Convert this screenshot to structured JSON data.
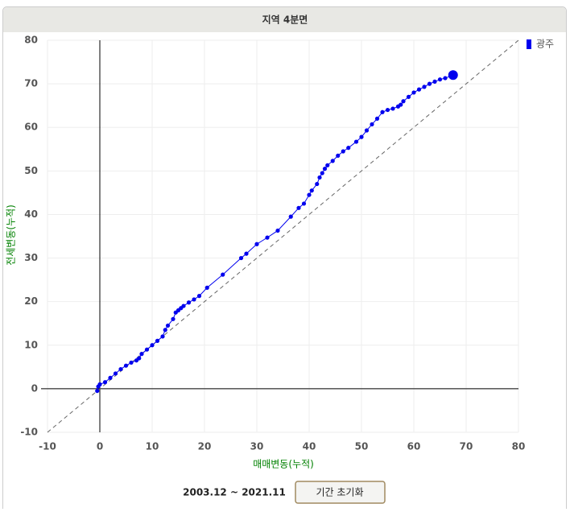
{
  "chart_data": {
    "type": "scatter",
    "title": "지역 4분면",
    "x_label": "매매변동(누적)",
    "y_label": "전세변동(누적)",
    "xlim": [
      -10,
      80
    ],
    "ylim": [
      -10,
      80
    ],
    "xticks": [
      -10,
      0,
      10,
      20,
      30,
      40,
      50,
      60,
      70,
      80
    ],
    "yticks": [
      -10,
      0,
      10,
      20,
      30,
      40,
      50,
      60,
      70,
      80
    ],
    "grid": true,
    "diagonal": true,
    "legend": "top-right",
    "series": [
      {
        "name": "광주",
        "color": "#0000ee",
        "x": [
          -0.5,
          -0.3,
          0,
          1,
          2,
          3,
          4,
          5,
          6,
          7,
          7.5,
          8,
          9,
          10,
          11,
          12,
          12.5,
          13,
          14,
          14.5,
          15,
          15.5,
          16,
          17,
          18,
          19,
          20.5,
          23.5,
          27,
          28,
          30,
          32,
          34,
          36.5,
          38,
          39,
          40,
          40.5,
          41.5,
          42,
          42.5,
          43,
          43.5,
          44.5,
          45.5,
          46.5,
          47.5,
          49,
          50,
          51,
          52,
          53,
          54,
          55,
          56,
          57,
          57.5,
          58,
          59,
          60,
          61,
          62,
          63,
          64,
          65,
          66,
          67.5
        ],
        "values": [
          -0.5,
          0.5,
          1,
          1.5,
          2.5,
          3.5,
          4.5,
          5.3,
          6,
          6.5,
          7,
          8,
          9,
          10,
          11,
          12,
          13.5,
          14.5,
          16,
          17.5,
          18,
          18.5,
          19,
          19.8,
          20.5,
          21.3,
          23.2,
          26.2,
          30,
          31,
          33.2,
          34.7,
          36.3,
          39.5,
          41.5,
          42.5,
          44.5,
          45.5,
          47,
          48.5,
          49.5,
          50.5,
          51.3,
          52.3,
          53.5,
          54.5,
          55.3,
          56.7,
          57.8,
          59.3,
          60.7,
          62,
          63.5,
          64,
          64.3,
          64.8,
          65.2,
          66,
          67,
          68,
          68.7,
          69.3,
          70,
          70.5,
          71,
          71.3,
          72
        ]
      }
    ]
  },
  "footer": {
    "period": "2003.12 ~ 2021.11",
    "reset_button": "기간 초기화"
  }
}
